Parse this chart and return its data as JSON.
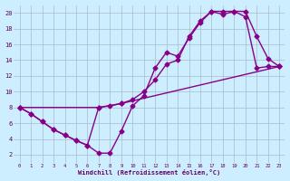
{
  "xlabel": "Windchill (Refroidissement éolien,°C)",
  "background_color": "#cceeff",
  "grid_color": "#aabbcc",
  "line_color": "#880088",
  "xlim": [
    -0.5,
    23.5
  ],
  "ylim": [
    1,
    21
  ],
  "xticks": [
    0,
    1,
    2,
    3,
    4,
    5,
    6,
    7,
    8,
    9,
    10,
    11,
    12,
    13,
    14,
    15,
    16,
    17,
    18,
    19,
    20,
    21,
    22,
    23
  ],
  "yticks": [
    2,
    4,
    6,
    8,
    10,
    12,
    14,
    16,
    18,
    20
  ],
  "line1_x": [
    0,
    1,
    2,
    3,
    4,
    5,
    6,
    7,
    8,
    9,
    10,
    11,
    12,
    13,
    14,
    15,
    16,
    17,
    18,
    19,
    20,
    21,
    22,
    23
  ],
  "line1_y": [
    8.0,
    7.2,
    6.2,
    5.2,
    4.5,
    3.8,
    3.2,
    2.2,
    2.2,
    5.0,
    8.2,
    9.5,
    13.0,
    15.0,
    14.5,
    16.8,
    18.8,
    20.2,
    19.8,
    20.2,
    20.2,
    17.0,
    14.2,
    13.2
  ],
  "line2_x": [
    0,
    1,
    2,
    3,
    4,
    5,
    6,
    7,
    8,
    9,
    10,
    11,
    12,
    13,
    14,
    15,
    16,
    17,
    18,
    19,
    20,
    21,
    22,
    23
  ],
  "line2_y": [
    8.0,
    7.2,
    6.2,
    5.2,
    4.5,
    3.8,
    3.2,
    8.0,
    8.2,
    8.5,
    9.0,
    10.0,
    11.5,
    13.5,
    14.0,
    17.0,
    19.0,
    20.2,
    20.2,
    20.2,
    19.5,
    13.0,
    13.2,
    13.2
  ],
  "line3_x": [
    0,
    7,
    9,
    23
  ],
  "line3_y": [
    8.0,
    8.0,
    8.5,
    13.2
  ],
  "marker": "D",
  "markersize": 2.5,
  "linewidth": 1.0
}
